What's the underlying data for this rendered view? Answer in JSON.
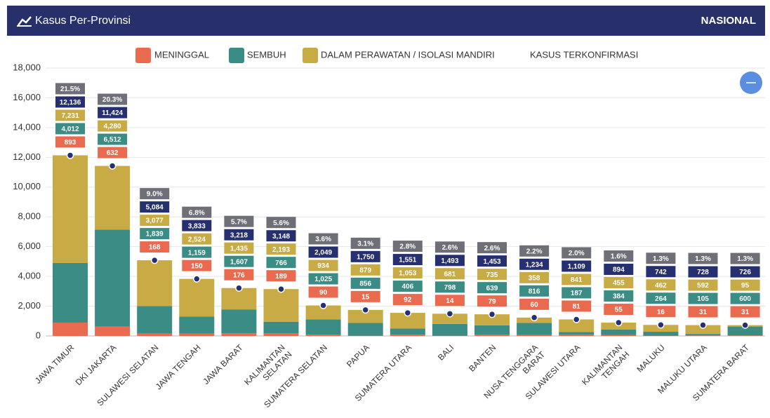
{
  "header": {
    "title": "Kasus Per-Provinsi",
    "scope": "NASIONAL"
  },
  "chart_data": {
    "type": "bar",
    "stacked": true,
    "categories": [
      "JAWA TIMUR",
      "DKI JAKARTA",
      "SULAWESI SELATAN",
      "JAWA TENGAH",
      "JAWA BARAT",
      "KALIMANTAN\nSELATAN",
      "SUMATERA SELATAN",
      "PAPUA",
      "SUMATERA UTARA",
      "BALI",
      "BANTEN",
      "NUSA TENGGARA\nBARAT",
      "SULAWESI UTARA",
      "KALIMANTAN\nTENGAH",
      "MALUKU",
      "MALUKU UTARA",
      "SUMATERA BARAT"
    ],
    "series": [
      {
        "name": "MENINGGAL",
        "color": "#ea6a50",
        "values": [
          893,
          632,
          168,
          150,
          176,
          189,
          90,
          15,
          92,
          14,
          79,
          60,
          81,
          55,
          16,
          31,
          31
        ]
      },
      {
        "name": "SEMBUH",
        "color": "#3a8c84",
        "values": [
          4012,
          6512,
          1839,
          1159,
          1607,
          766,
          1025,
          856,
          406,
          798,
          639,
          816,
          187,
          384,
          264,
          105,
          600
        ],
        "value_labels": [
          "4,012",
          "6,512",
          "1,839",
          "1,159",
          "1,607",
          "766",
          "1,025",
          "856",
          "406",
          "798",
          "639",
          "816",
          "187",
          "384",
          "264",
          "105",
          "600"
        ]
      },
      {
        "name": "DALAM PERAWATAN / ISOLASI MANDIRI",
        "color": "#c9ab45",
        "values": [
          7231,
          4280,
          3077,
          2524,
          1435,
          2193,
          934,
          879,
          1053,
          681,
          735,
          358,
          841,
          455,
          462,
          592,
          95
        ],
        "value_labels": [
          "7,231",
          "4,280",
          "3,077",
          "2,524",
          "1,435",
          "2,193",
          "934",
          "879",
          "1,053",
          "681",
          "735",
          "358",
          "841",
          "455",
          "462",
          "592",
          "95"
        ]
      }
    ],
    "total": {
      "name": "KASUS TERKONFIRMASI",
      "color": "#262f6f",
      "values": [
        12136,
        11424,
        5084,
        3833,
        3218,
        3148,
        2049,
        1750,
        1551,
        1493,
        1453,
        1234,
        1109,
        894,
        742,
        728,
        726
      ],
      "value_labels": [
        "12,136",
        "11,424",
        "5,084",
        "3,833",
        "3,218",
        "3,148",
        "2,049",
        "1,750",
        "1,551",
        "1,493",
        "1,453",
        "1,234",
        "1,109",
        "894",
        "742",
        "728",
        "726"
      ]
    },
    "share": {
      "color": "#6f6f78",
      "values": [
        21.5,
        20.3,
        9.0,
        6.8,
        5.7,
        5.6,
        3.6,
        3.1,
        2.8,
        2.6,
        2.6,
        2.2,
        2.0,
        1.6,
        1.3,
        1.3,
        1.3
      ],
      "value_labels": [
        "21.5%",
        "20.3%",
        "9.0%",
        "6.8%",
        "5.7%",
        "5.6%",
        "3.6%",
        "3.1%",
        "2.8%",
        "2.6%",
        "2.6%",
        "2.2%",
        "2.0%",
        "1.6%",
        "1.3%",
        "1.3%",
        "1.3%"
      ]
    },
    "ylim": [
      0,
      18000
    ],
    "yticks": [
      0,
      {
        "value": 2000,
        "label": "2,000"
      },
      {
        "value": 4000,
        "label": "4,000"
      },
      {
        "value": 6000,
        "label": "6,000"
      },
      {
        "value": 8000,
        "label": "8,000"
      },
      {
        "value": 10000,
        "label": "10,000"
      },
      {
        "value": 12000,
        "label": "12,000"
      },
      {
        "value": 14000,
        "label": "14,000"
      },
      {
        "value": 16000,
        "label": "16,000"
      },
      {
        "value": 18000,
        "label": "18,000"
      }
    ],
    "grid": true
  }
}
